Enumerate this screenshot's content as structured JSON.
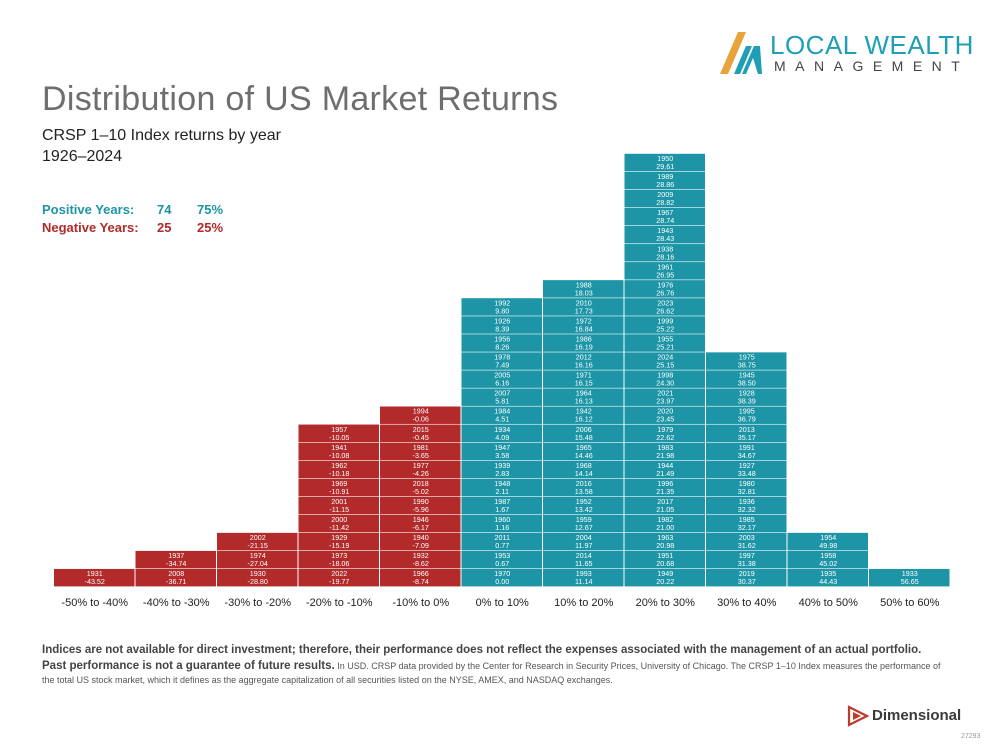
{
  "title": "Distribution of US Market Returns",
  "subtitle": "CRSP 1–10 Index returns by year",
  "years_range": "1926–2024",
  "stats": {
    "positive_label": "Positive Years:",
    "positive_count": "74",
    "positive_pct": "75%",
    "negative_label": "Negative Years:",
    "negative_count": "25",
    "negative_pct": "25%"
  },
  "logo": {
    "line1": "LOCAL WEALTH",
    "line2": "MANAGEMENT"
  },
  "colors": {
    "positive": "#1d95a6",
    "negative": "#b22a2a"
  },
  "chart_data": {
    "type": "histogram",
    "bins": [
      {
        "label": "-50% to -40%",
        "sign": "negative",
        "entries": [
          [
            "1931",
            "-43.52"
          ]
        ]
      },
      {
        "label": "-40% to -30%",
        "sign": "negative",
        "entries": [
          [
            "2008",
            "-36.71"
          ],
          [
            "1937",
            "-34.74"
          ]
        ]
      },
      {
        "label": "-30% to -20%",
        "sign": "negative",
        "entries": [
          [
            "1930",
            "-28.80"
          ],
          [
            "1974",
            "-27.04"
          ],
          [
            "2002",
            "-21.15"
          ]
        ]
      },
      {
        "label": "-20% to -10%",
        "sign": "negative",
        "entries": [
          [
            "2022",
            "-19.77"
          ],
          [
            "1973",
            "-18.06"
          ],
          [
            "1929",
            "-15.19"
          ],
          [
            "2000",
            "-11.42"
          ],
          [
            "2001",
            "-11.15"
          ],
          [
            "1969",
            "-10.91"
          ],
          [
            "1962",
            "-10.18"
          ],
          [
            "1941",
            "-10.08"
          ],
          [
            "1957",
            "-10.05"
          ]
        ]
      },
      {
        "label": "-10% to 0%",
        "sign": "negative",
        "entries": [
          [
            "1966",
            "-8.74"
          ],
          [
            "1932",
            "-8.62"
          ],
          [
            "1940",
            "-7.09"
          ],
          [
            "1946",
            "-6.17"
          ],
          [
            "1990",
            "-5.96"
          ],
          [
            "2018",
            "-5.02"
          ],
          [
            "1977",
            "-4.26"
          ],
          [
            "1981",
            "-3.65"
          ],
          [
            "2015",
            "-0.45"
          ],
          [
            "1994",
            "-0.06"
          ]
        ]
      },
      {
        "label": "0% to 10%",
        "sign": "positive",
        "entries": [
          [
            "1970",
            "0.00"
          ],
          [
            "1953",
            "0.67"
          ],
          [
            "2011",
            "0.77"
          ],
          [
            "1960",
            "1.16"
          ],
          [
            "1987",
            "1.67"
          ],
          [
            "1948",
            "2.11"
          ],
          [
            "1939",
            "2.83"
          ],
          [
            "1947",
            "3.58"
          ],
          [
            "1934",
            "4.09"
          ],
          [
            "1984",
            "4.51"
          ],
          [
            "2007",
            "5.81"
          ],
          [
            "2005",
            "6.16"
          ],
          [
            "1978",
            "7.49"
          ],
          [
            "1956",
            "8.26"
          ],
          [
            "1926",
            "8.39"
          ],
          [
            "1992",
            "9.80"
          ]
        ]
      },
      {
        "label": "10% to 20%",
        "sign": "positive",
        "entries": [
          [
            "1993",
            "11.14"
          ],
          [
            "2014",
            "11.65"
          ],
          [
            "2004",
            "11.97"
          ],
          [
            "1959",
            "12.67"
          ],
          [
            "1952",
            "13.42"
          ],
          [
            "2016",
            "13.58"
          ],
          [
            "1968",
            "14.14"
          ],
          [
            "1965",
            "14.46"
          ],
          [
            "2006",
            "15.48"
          ],
          [
            "1942",
            "16.12"
          ],
          [
            "1964",
            "16.13"
          ],
          [
            "1971",
            "16.15"
          ],
          [
            "2012",
            "16.16"
          ],
          [
            "1986",
            "16.19"
          ],
          [
            "1972",
            "16.84"
          ],
          [
            "2010",
            "17.73"
          ],
          [
            "1988",
            "18.03"
          ]
        ]
      },
      {
        "label": "20% to 30%",
        "sign": "positive",
        "entries": [
          [
            "1949",
            "20.22"
          ],
          [
            "1951",
            "20.68"
          ],
          [
            "1963",
            "20.98"
          ],
          [
            "1982",
            "21.00"
          ],
          [
            "2017",
            "21.05"
          ],
          [
            "1996",
            "21.35"
          ],
          [
            "1944",
            "21.49"
          ],
          [
            "1983",
            "21.98"
          ],
          [
            "1979",
            "22.62"
          ],
          [
            "2020",
            "23.45"
          ],
          [
            "2021",
            "23.97"
          ],
          [
            "1998",
            "24.30"
          ],
          [
            "2024",
            "25.15"
          ],
          [
            "1955",
            "25.21"
          ],
          [
            "1999",
            "25.22"
          ],
          [
            "2023",
            "26.62"
          ],
          [
            "1976",
            "26.76"
          ],
          [
            "1961",
            "26.95"
          ],
          [
            "1938",
            "28.16"
          ],
          [
            "1943",
            "28.43"
          ],
          [
            "1967",
            "28.74"
          ],
          [
            "2009",
            "28.82"
          ],
          [
            "1989",
            "28.86"
          ],
          [
            "1950",
            "29.61"
          ]
        ]
      },
      {
        "label": "30% to 40%",
        "sign": "positive",
        "entries": [
          [
            "2019",
            "30.37"
          ],
          [
            "1997",
            "31.38"
          ],
          [
            "2003",
            "31.62"
          ],
          [
            "1985",
            "32.17"
          ],
          [
            "1936",
            "32.32"
          ],
          [
            "1980",
            "32.81"
          ],
          [
            "1927",
            "33.48"
          ],
          [
            "1991",
            "34.67"
          ],
          [
            "2013",
            "35.17"
          ],
          [
            "1995",
            "36.79"
          ],
          [
            "1928",
            "38.39"
          ],
          [
            "1945",
            "38.50"
          ],
          [
            "1975",
            "38.75"
          ]
        ]
      },
      {
        "label": "40% to 50%",
        "sign": "positive",
        "entries": [
          [
            "1935",
            "44.43"
          ],
          [
            "1958",
            "45.02"
          ],
          [
            "1954",
            "49.98"
          ]
        ]
      },
      {
        "label": "50% to 60%",
        "sign": "positive",
        "entries": [
          [
            "1933",
            "56.65"
          ]
        ]
      }
    ]
  },
  "disclaimer_bold": "Indices are not available for direct investment; therefore, their performance does not reflect the expenses associated with the management of an actual portfolio. Past performance is not a guarantee of future results.",
  "disclaimer_text": "In USD. CRSP data provided by the Center for Research in Security Prices, University of Chicago. The CRSP 1–10 Index measures the performance of the total US stock market, which it defines as the aggregate capitalization of all securities listed on the NYSE, AMEX, and NASDAQ exchanges.",
  "footer_brand": "Dimensional",
  "doc_code": "27293"
}
